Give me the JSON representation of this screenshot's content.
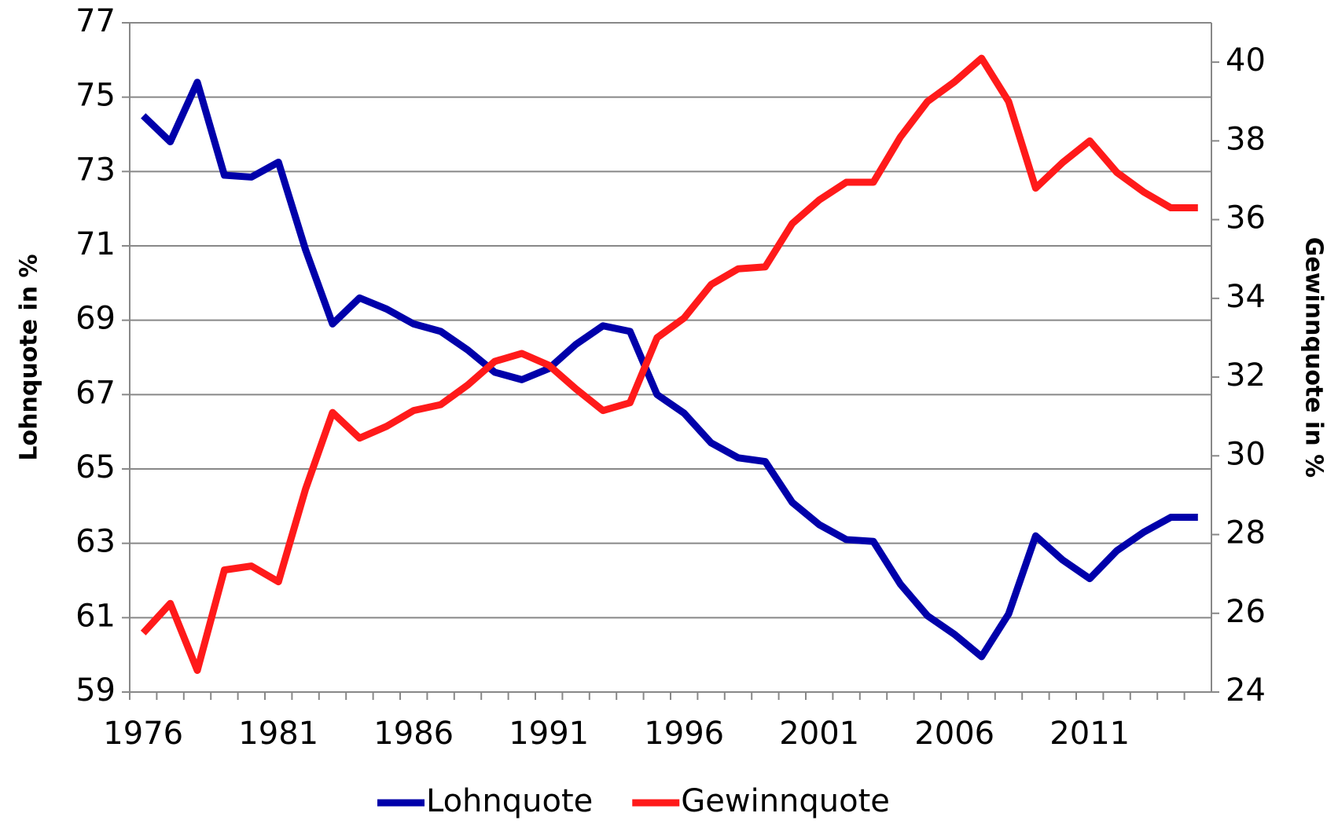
{
  "chart_data": {
    "type": "line",
    "categories": [
      "1976",
      null,
      null,
      null,
      null,
      "1981",
      null,
      null,
      null,
      null,
      "1986",
      null,
      null,
      null,
      null,
      "1991",
      null,
      null,
      null,
      null,
      "1996",
      null,
      null,
      null,
      null,
      "2001",
      null,
      null,
      null,
      null,
      "2006",
      null,
      null,
      null,
      null,
      "2011",
      null,
      null,
      null,
      null
    ],
    "series": [
      {
        "name": "Lohnquote",
        "color": "#0000aa",
        "values": [
          74.5,
          73.8,
          75.4,
          72.9,
          72.85,
          73.25,
          70.9,
          68.9,
          69.6,
          69.3,
          68.9,
          68.7,
          68.2,
          67.6,
          67.4,
          67.7,
          68.35,
          68.85,
          68.7,
          67.0,
          66.5,
          65.7,
          65.3,
          65.2,
          64.1,
          63.5,
          63.1,
          63.05,
          61.9,
          61.05,
          60.55,
          59.95,
          61.1,
          63.2,
          62.55,
          62.05,
          62.8,
          63.3,
          63.7,
          63.7
        ]
      },
      {
        "name": "Gewinnquote",
        "color": "#ff1a1a",
        "axis": "y2",
        "values": [
          25.5,
          26.25,
          24.55,
          27.1,
          27.2,
          26.8,
          29.15,
          31.1,
          30.45,
          30.75,
          31.15,
          31.3,
          31.8,
          32.4,
          32.6,
          32.3,
          31.7,
          31.15,
          31.35,
          33.0,
          33.5,
          34.35,
          34.75,
          34.8,
          35.9,
          36.5,
          36.95,
          36.95,
          38.1,
          39.0,
          39.5,
          40.1,
          39.0,
          36.8,
          37.45,
          38.0,
          37.2,
          36.7,
          36.3,
          36.3
        ]
      }
    ],
    "ylabel": "Lohnquote in %",
    "y2label": "Gewinnquote in %",
    "ylim": [
      59,
      77
    ],
    "yticks": [
      59,
      61,
      63,
      65,
      67,
      69,
      71,
      73,
      75,
      77
    ],
    "y2lim": [
      24,
      41
    ],
    "y2ticks": [
      24,
      26,
      28,
      30,
      32,
      34,
      36,
      38,
      40
    ],
    "grid": true,
    "legend": "bottom"
  }
}
